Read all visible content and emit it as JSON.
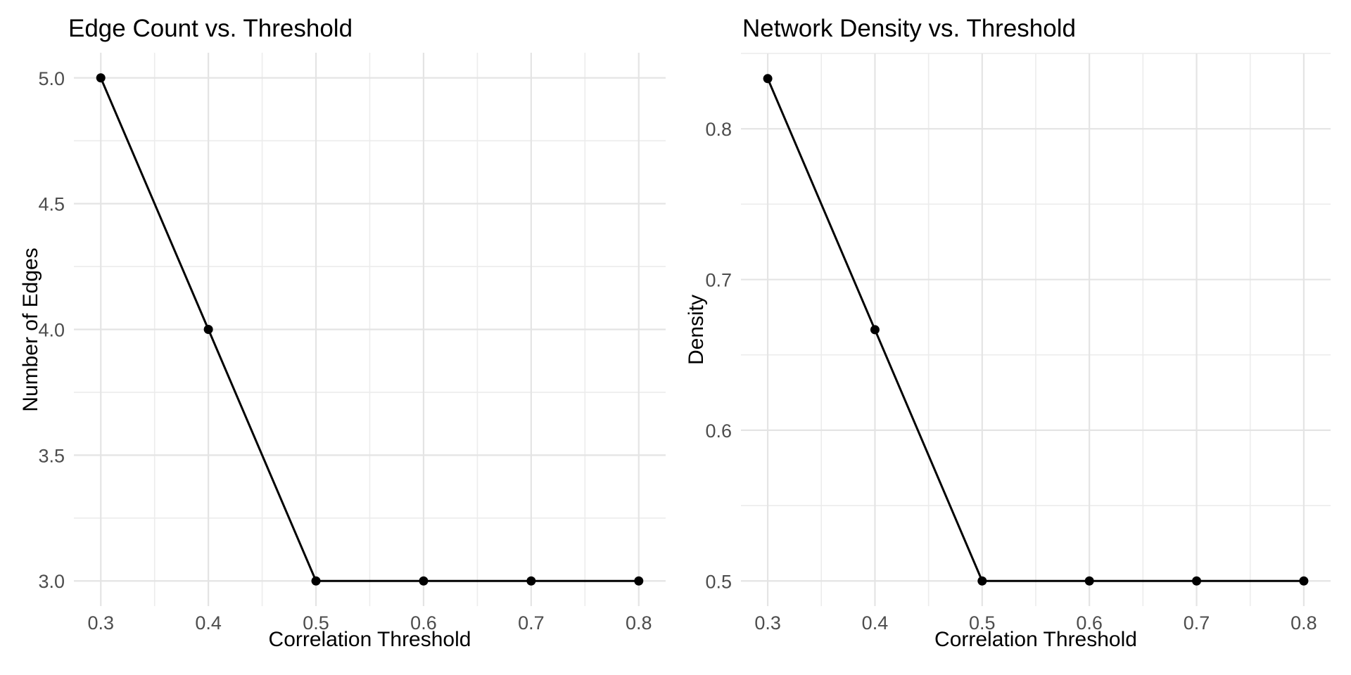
{
  "figure": {
    "background": "#FFFFFF",
    "text_color": "#000000",
    "tick_label_color": "#4D4D4D",
    "grid_major_color": "#E4E4E4",
    "grid_minor_color": "#ECECEC"
  },
  "chart_data": [
    {
      "type": "line",
      "title": "Edge Count vs. Threshold",
      "xlabel": "Correlation Threshold",
      "ylabel": "Number of Edges",
      "x": [
        0.3,
        0.4,
        0.5,
        0.6,
        0.7,
        0.8
      ],
      "y": [
        5.0,
        4.0,
        3.0,
        3.0,
        3.0,
        3.0
      ],
      "xlim": [
        0.275,
        0.825
      ],
      "ylim": [
        2.9,
        5.1
      ],
      "x_ticks": [
        {
          "v": 0.3,
          "label": "0.3"
        },
        {
          "v": 0.4,
          "label": "0.4"
        },
        {
          "v": 0.5,
          "label": "0.5"
        },
        {
          "v": 0.6,
          "label": "0.6"
        },
        {
          "v": 0.7,
          "label": "0.7"
        },
        {
          "v": 0.8,
          "label": "0.8"
        }
      ],
      "y_ticks": [
        {
          "v": 3.0,
          "label": "3.0"
        },
        {
          "v": 3.5,
          "label": "3.5"
        },
        {
          "v": 4.0,
          "label": "4.0"
        },
        {
          "v": 4.5,
          "label": "4.5"
        },
        {
          "v": 5.0,
          "label": "5.0"
        }
      ],
      "x_minor": [
        0.35,
        0.45,
        0.55,
        0.65,
        0.75
      ],
      "y_minor": [
        3.25,
        3.75,
        4.25,
        4.75
      ],
      "grid": true,
      "legend": "none",
      "line_color": "#000000",
      "point_color": "#000000"
    },
    {
      "type": "line",
      "title": "Network Density vs. Threshold",
      "xlabel": "Correlation Threshold",
      "ylabel": "Density",
      "x": [
        0.3,
        0.4,
        0.5,
        0.6,
        0.7,
        0.8
      ],
      "y": [
        0.8333,
        0.6667,
        0.5,
        0.5,
        0.5,
        0.5
      ],
      "xlim": [
        0.275,
        0.825
      ],
      "ylim": [
        0.48333,
        0.85
      ],
      "x_ticks": [
        {
          "v": 0.3,
          "label": "0.3"
        },
        {
          "v": 0.4,
          "label": "0.4"
        },
        {
          "v": 0.5,
          "label": "0.5"
        },
        {
          "v": 0.6,
          "label": "0.6"
        },
        {
          "v": 0.7,
          "label": "0.7"
        },
        {
          "v": 0.8,
          "label": "0.8"
        }
      ],
      "y_ticks": [
        {
          "v": 0.5,
          "label": "0.5"
        },
        {
          "v": 0.6,
          "label": "0.6"
        },
        {
          "v": 0.7,
          "label": "0.7"
        },
        {
          "v": 0.8,
          "label": "0.8"
        }
      ],
      "x_minor": [
        0.35,
        0.45,
        0.55,
        0.65,
        0.75
      ],
      "y_minor": [
        0.55,
        0.65,
        0.75,
        0.85
      ],
      "grid": true,
      "legend": "none",
      "line_color": "#000000",
      "point_color": "#000000"
    }
  ]
}
